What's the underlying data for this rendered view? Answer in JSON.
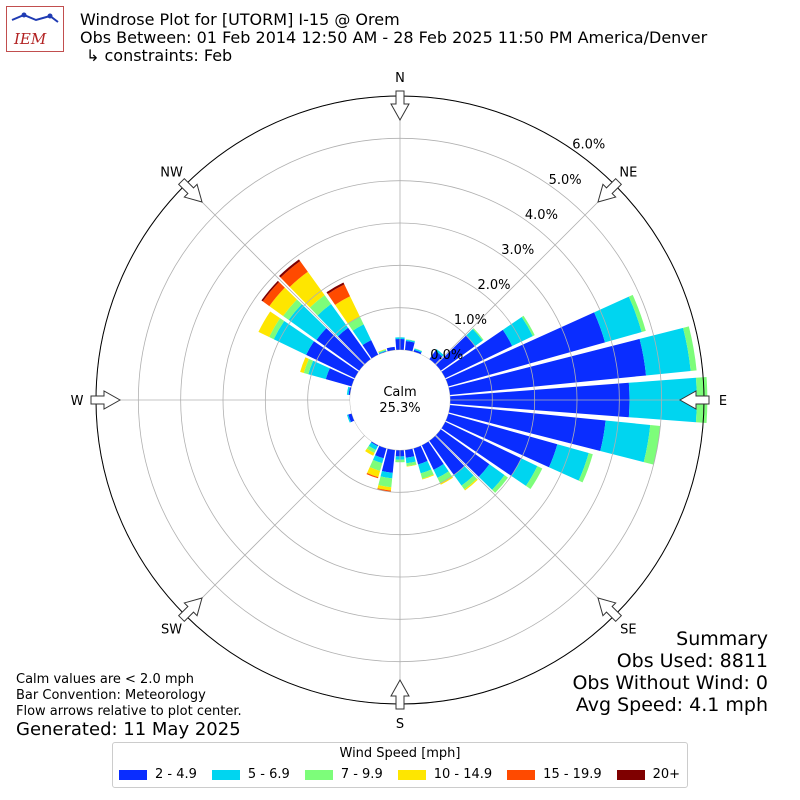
{
  "header": {
    "logo_text": "IEM",
    "title": "Windrose Plot for [UTORM] I-15 @ Orem",
    "subtitle": "Obs Between: 01 Feb 2014 12:50 AM - 28 Feb 2025 11:50 PM America/Denver",
    "constraints": "↳ constraints: Feb"
  },
  "summary": {
    "heading": "Summary",
    "obs_used": "Obs Used: 8811",
    "obs_without_wind": "Obs Without Wind: 0",
    "avg_speed": "Avg Speed: 4.1 mph"
  },
  "notes": {
    "calm_def": "Calm values are < 2.0 mph",
    "bar_convention": "Bar Convention: Meteorology",
    "flow_arrows": "Flow arrows relative to plot center.",
    "generated": "Generated: 11 May 2025"
  },
  "chart_data": {
    "type": "windrose",
    "calm_label": "Calm",
    "calm_value": "25.3%",
    "radial_ticks": [
      "0.0%",
      "1.0%",
      "2.0%",
      "3.0%",
      "4.0%",
      "5.0%",
      "6.0%"
    ],
    "radial_max": 6.0,
    "calm_fraction": 25.3,
    "directions": [
      "N",
      "NE",
      "E",
      "SE",
      "S",
      "SW",
      "W",
      "NW"
    ],
    "legend_title": "Wind Speed [mph]",
    "speed_bins": [
      {
        "label": "2 - 4.9",
        "color": "#0a2dff"
      },
      {
        "label": "5 - 6.9",
        "color": "#00d5f0"
      },
      {
        "label": "7 - 9.9",
        "color": "#7dfd7a"
      },
      {
        "label": "10 - 14.9",
        "color": "#fee600"
      },
      {
        "label": "15 - 19.9",
        "color": "#ff4a00"
      },
      {
        "label": "20+",
        "color": "#7f0000"
      }
    ],
    "sectors_deg": [
      0,
      10,
      20,
      30,
      40,
      50,
      60,
      70,
      80,
      90,
      100,
      110,
      120,
      130,
      140,
      150,
      160,
      170,
      180,
      190,
      200,
      210,
      220,
      230,
      240,
      250,
      260,
      270,
      280,
      290,
      300,
      310,
      320,
      330,
      340,
      350
    ],
    "cumulative_percent": [
      [
        0.26,
        0.3,
        0.3,
        0.3,
        0.3,
        0.3
      ],
      [
        0.22,
        0.25,
        0.26,
        0.26,
        0.26,
        0.26
      ],
      [
        0.05,
        0.08,
        0.09,
        0.09,
        0.09,
        0.09
      ],
      [
        0.0,
        0.0,
        0.0,
        0.0,
        0.0,
        0.0
      ],
      [
        0.25,
        0.3,
        0.3,
        0.3,
        0.3,
        0.3
      ],
      [
        1.0,
        1.22,
        1.25,
        1.25,
        1.25,
        1.25
      ],
      [
        1.76,
        2.3,
        2.35,
        2.35,
        2.35,
        2.35
      ],
      [
        3.85,
        4.75,
        4.85,
        4.85,
        4.85,
        4.85
      ],
      [
        4.66,
        5.72,
        5.86,
        5.86,
        5.86,
        5.86
      ],
      [
        4.24,
        5.83,
        6.08,
        6.08,
        6.08,
        6.08
      ],
      [
        3.7,
        4.76,
        5.0,
        5.0,
        5.0,
        5.0
      ],
      [
        2.68,
        3.45,
        3.55,
        3.55,
        3.55,
        3.55
      ],
      [
        2.0,
        2.42,
        2.55,
        2.55,
        2.55,
        2.55
      ],
      [
        1.42,
        1.86,
        1.96,
        1.96,
        1.96,
        1.96
      ],
      [
        1.0,
        1.31,
        1.42,
        1.45,
        1.45,
        1.45
      ],
      [
        0.65,
        0.86,
        1.0,
        1.04,
        1.04,
        1.04
      ],
      [
        0.4,
        0.62,
        0.75,
        0.77,
        0.77,
        0.77
      ],
      [
        0.19,
        0.32,
        0.39,
        0.4,
        0.4,
        0.4
      ],
      [
        0.15,
        0.23,
        0.29,
        0.29,
        0.29,
        0.29
      ],
      [
        0.55,
        0.68,
        0.89,
        0.97,
        1.0,
        1.0
      ],
      [
        0.25,
        0.37,
        0.56,
        0.71,
        0.74,
        0.74
      ],
      [
        0.03,
        0.13,
        0.21,
        0.28,
        0.28,
        0.28
      ],
      [
        0.0,
        0.0,
        0.0,
        0.0,
        0.0,
        0.0
      ],
      [
        0.0,
        0.0,
        0.0,
        0.0,
        0.0,
        0.0
      ],
      [
        0.0,
        0.0,
        0.0,
        0.0,
        0.0,
        0.0
      ],
      [
        0.09,
        0.12,
        0.12,
        0.12,
        0.12,
        0.12
      ],
      [
        0.0,
        0.0,
        0.0,
        0.0,
        0.0,
        0.0
      ],
      [
        0.0,
        0.0,
        0.0,
        0.0,
        0.0,
        0.0
      ],
      [
        0.04,
        0.08,
        0.08,
        0.08,
        0.08,
        0.08
      ],
      [
        0.64,
        1.07,
        1.18,
        1.27,
        1.27,
        1.27
      ],
      [
        1.28,
        2.13,
        2.25,
        2.53,
        2.53,
        2.53
      ],
      [
        1.25,
        2.06,
        2.22,
        2.62,
        2.81,
        2.85
      ],
      [
        0.92,
        1.61,
        1.87,
        2.55,
        2.86,
        2.91
      ],
      [
        0.39,
        0.8,
        1.0,
        1.54,
        1.85,
        1.9
      ],
      [
        0.02,
        0.04,
        0.06,
        0.07,
        0.07,
        0.07
      ],
      [
        0.08,
        0.08,
        0.08,
        0.08,
        0.08,
        0.08
      ]
    ]
  }
}
